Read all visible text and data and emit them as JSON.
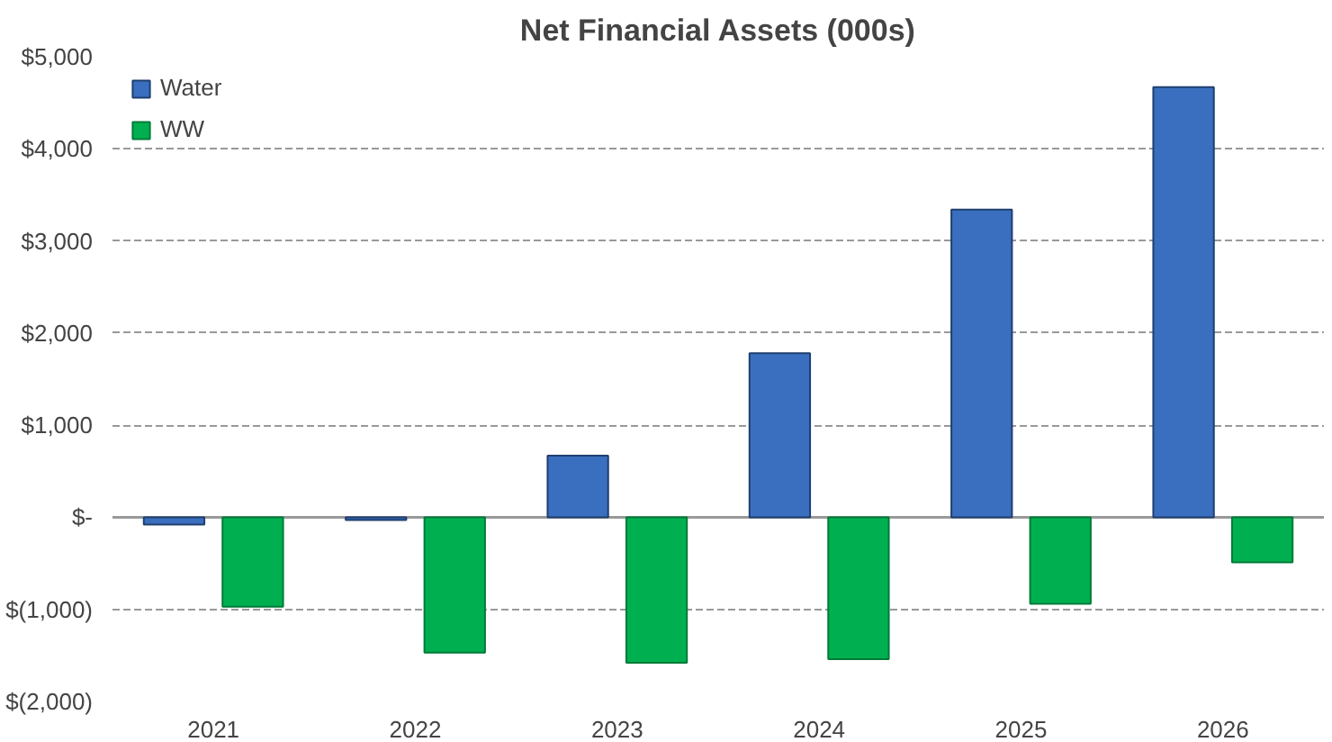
{
  "chart_data": {
    "type": "bar",
    "title": "Net Financial Assets (000s)",
    "categories": [
      "2021",
      "2022",
      "2023",
      "2024",
      "2025",
      "2026"
    ],
    "series": [
      {
        "name": "Water",
        "color": "#3a6fbf",
        "values": [
          -80,
          -30,
          670,
          1780,
          3340,
          4670
        ]
      },
      {
        "name": "WW",
        "color": "#00b050",
        "values": [
          -970,
          -1470,
          -1580,
          -1540,
          -940,
          -490
        ]
      }
    ],
    "ylim": [
      -2000,
      5000
    ],
    "yticks": [
      {
        "value": -2000,
        "label": "$(2,000)"
      },
      {
        "value": -1000,
        "label": "$(1,000)"
      },
      {
        "value": 0,
        "label": "$-"
      },
      {
        "value": 1000,
        "label": "$1,000"
      },
      {
        "value": 2000,
        "label": "$2,000"
      },
      {
        "value": 3000,
        "label": "$3,000"
      },
      {
        "value": 4000,
        "label": "$4,000"
      },
      {
        "value": 5000,
        "label": "$5,000"
      }
    ],
    "grid": "y",
    "legend": "top left"
  }
}
